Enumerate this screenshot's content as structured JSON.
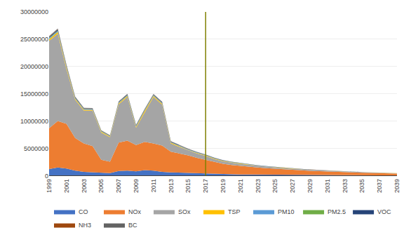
{
  "chart_data": {
    "type": "area",
    "stacked": true,
    "x": [
      1999,
      2000,
      2001,
      2002,
      2003,
      2004,
      2005,
      2006,
      2007,
      2008,
      2009,
      2010,
      2011,
      2012,
      2013,
      2014,
      2015,
      2016,
      2017,
      2018,
      2019,
      2020,
      2021,
      2022,
      2023,
      2024,
      2025,
      2026,
      2027,
      2028,
      2029,
      2030,
      2031,
      2032,
      2033,
      2034,
      2035,
      2036,
      2037,
      2038,
      2039
    ],
    "series": [
      {
        "name": "CO",
        "color": "#4472C4",
        "values": [
          1200000,
          1500000,
          1300000,
          900000,
          700000,
          600000,
          500000,
          450000,
          850000,
          900000,
          800000,
          1000000,
          900000,
          700000,
          600000,
          550000,
          500000,
          450000,
          400000,
          300000,
          260000,
          240000,
          220000,
          200000,
          185000,
          170000,
          155000,
          145000,
          135000,
          125000,
          115000,
          105000,
          97000,
          90000,
          83000,
          76000,
          70000,
          64000,
          59000,
          54000,
          50000
        ]
      },
      {
        "name": "NOx",
        "color": "#ED7D31",
        "values": [
          7500000,
          8500000,
          8200000,
          6000000,
          5200000,
          4800000,
          2400000,
          2100000,
          5200000,
          5500000,
          4800000,
          5200000,
          5000000,
          4800000,
          3800000,
          3500000,
          3200000,
          2800000,
          2500000,
          2200000,
          1900000,
          1700000,
          1550000,
          1420000,
          1300000,
          1190000,
          1090000,
          1000000,
          920000,
          845000,
          775000,
          710000,
          652000,
          598000,
          549000,
          504000,
          463000,
          425000,
          390000,
          358000,
          329000
        ]
      },
      {
        "name": "SOx",
        "color": "#A5A5A5",
        "values": [
          16000000,
          16000000,
          10000000,
          7000000,
          6000000,
          6500000,
          5000000,
          4500000,
          7000000,
          8000000,
          3200000,
          5500000,
          8500000,
          7500000,
          1500000,
          1200000,
          900000,
          800000,
          700000,
          550000,
          470000,
          420000,
          380000,
          345000,
          310000,
          280000,
          255000,
          232000,
          211000,
          192000,
          174000,
          159000,
          145000,
          132000,
          120000,
          109000,
          100000,
          91000,
          83000,
          76000,
          69000
        ]
      },
      {
        "name": "TSP",
        "color": "#FFC000",
        "values": [
          300000,
          350000,
          300000,
          200000,
          180000,
          170000,
          150000,
          130000,
          200000,
          210000,
          180000,
          200000,
          200000,
          190000,
          150000,
          130000,
          120000,
          110000,
          100000,
          85000,
          74000,
          65000,
          58000,
          52000,
          46000,
          42000,
          38000,
          34000,
          31000,
          28000,
          25000,
          23000,
          21000,
          19000,
          17000,
          16000,
          14000,
          13000,
          12000,
          11000,
          10000
        ]
      },
      {
        "name": "PM10",
        "color": "#5B9BD5",
        "values": [
          150000,
          160000,
          140000,
          100000,
          90000,
          85000,
          75000,
          65000,
          100000,
          105000,
          90000,
          100000,
          100000,
          95000,
          75000,
          65000,
          60000,
          55000,
          50000,
          43000,
          37000,
          33000,
          29000,
          26000,
          23000,
          21000,
          19000,
          17000,
          15000,
          14000,
          12000,
          11000,
          10000,
          9200,
          8400,
          7700,
          7000,
          6400,
          5900,
          5400,
          4900
        ]
      },
      {
        "name": "PM2.5",
        "color": "#70AD47",
        "values": [
          80000,
          85000,
          75000,
          55000,
          48000,
          45000,
          40000,
          35000,
          53000,
          56000,
          48000,
          53000,
          53000,
          50000,
          40000,
          35000,
          32000,
          29000,
          26000,
          22000,
          19000,
          17000,
          15000,
          14000,
          12000,
          11000,
          10000,
          9100,
          8300,
          7500,
          6800,
          6200,
          5700,
          5200,
          4700,
          4300,
          3900,
          3600,
          3300,
          3000,
          2800
        ]
      },
      {
        "name": "VOC",
        "color": "#264478",
        "values": [
          180000,
          190000,
          165000,
          120000,
          105000,
          98000,
          85000,
          78000,
          120000,
          125000,
          105000,
          120000,
          115000,
          110000,
          88000,
          76000,
          70000,
          64000,
          58000,
          50000,
          43000,
          38000,
          34000,
          31000,
          28000,
          25000,
          23000,
          21000,
          19000,
          17000,
          16000,
          14000,
          13000,
          12000,
          11000,
          10000,
          9100,
          8300,
          7600,
          7000,
          6400
        ]
      },
      {
        "name": "NH3",
        "color": "#9E480E",
        "values": [
          50000,
          55000,
          48000,
          35000,
          30000,
          28000,
          25000,
          22000,
          34000,
          36000,
          31000,
          34000,
          33000,
          31000,
          25000,
          22000,
          20000,
          18000,
          16000,
          14000,
          12000,
          11000,
          9900,
          8900,
          8000,
          7300,
          6600,
          6000,
          5400,
          4900,
          4500,
          4100,
          3700,
          3400,
          3100,
          2800,
          2600,
          2400,
          2200,
          2000,
          1800
        ]
      },
      {
        "name": "BC",
        "color": "#636363",
        "values": [
          90000,
          95000,
          83000,
          60000,
          53000,
          49000,
          43000,
          39000,
          60000,
          63000,
          54000,
          60000,
          58000,
          55000,
          44000,
          38000,
          35000,
          32000,
          29000,
          25000,
          21000,
          19000,
          17000,
          15000,
          14000,
          12000,
          11000,
          10000,
          9200,
          8400,
          7600,
          7000,
          6400,
          5800,
          5300,
          4800,
          4400,
          4000,
          3700,
          3400,
          3100
        ]
      }
    ],
    "vline": {
      "x": 2017,
      "color": "#808000"
    },
    "xlim": [
      1999,
      2039
    ],
    "xticks": [
      1999,
      2001,
      2003,
      2005,
      2007,
      2009,
      2011,
      2013,
      2015,
      2017,
      2019,
      2021,
      2023,
      2025,
      2027,
      2029,
      2031,
      2033,
      2035,
      2037,
      2039
    ],
    "ylim": [
      0,
      30000000
    ],
    "yticks": [
      0,
      5000000,
      10000000,
      15000000,
      20000000,
      25000000,
      30000000
    ],
    "grid": "y",
    "legend": "bottom"
  }
}
